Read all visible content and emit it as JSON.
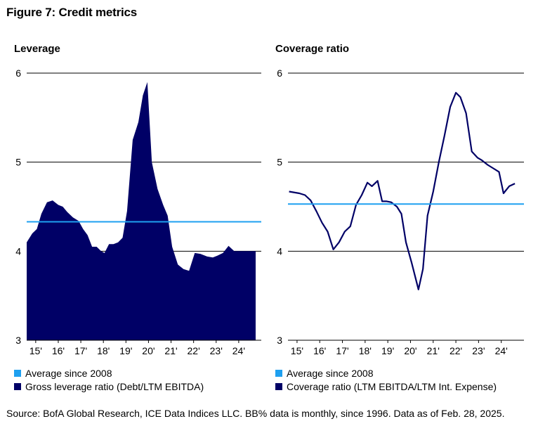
{
  "title": "Figure 7: Credit metrics",
  "source": "Source: BofA Global Research, ICE Data Indices LLC. BB% data is monthly, since 1996. Data as of Feb. 28, 2025.",
  "colors": {
    "navy": "#000066",
    "light_blue": "#1ea0f0"
  },
  "chart_data": [
    {
      "type": "area",
      "title": "Leverage",
      "xlabel": "",
      "ylabel": "",
      "ylim": [
        3,
        6
      ],
      "yticks": [
        3,
        4,
        5,
        6
      ],
      "xlim": [
        2014.6,
        2025.0
      ],
      "xtick_labels": [
        "15'",
        "16'",
        "17'",
        "18'",
        "19'",
        "20'",
        "21'",
        "22'",
        "23'",
        "24'"
      ],
      "xtick_positions": [
        2015,
        2016,
        2017,
        2018,
        2019,
        2020,
        2021,
        2022,
        2023,
        2024
      ],
      "grid": "horizontal",
      "legend": "bottom",
      "series": [
        {
          "name": "Gross leverage ratio (Debt/LTM EBITDA)",
          "color": "#000066",
          "x": [
            2014.6,
            2014.85,
            2015.05,
            2015.25,
            2015.5,
            2015.75,
            2016.0,
            2016.2,
            2016.4,
            2016.65,
            2016.9,
            2017.1,
            2017.3,
            2017.5,
            2017.7,
            2017.9,
            2018.05,
            2018.25,
            2018.45,
            2018.65,
            2018.85,
            2019.05,
            2019.3,
            2019.55,
            2019.75,
            2019.95,
            2020.15,
            2020.4,
            2020.65,
            2020.85,
            2021.05,
            2021.3,
            2021.55,
            2021.8,
            2022.05,
            2022.3,
            2022.6,
            2022.85,
            2023.05,
            2023.3,
            2023.55,
            2023.8,
            2024.05,
            2024.3,
            2024.55,
            2024.75
          ],
          "values": [
            4.1,
            4.2,
            4.25,
            4.42,
            4.55,
            4.57,
            4.52,
            4.5,
            4.44,
            4.38,
            4.34,
            4.25,
            4.18,
            4.05,
            4.05,
            4.0,
            3.98,
            4.08,
            4.08,
            4.1,
            4.15,
            4.45,
            5.25,
            5.45,
            5.75,
            5.9,
            5.0,
            4.7,
            4.52,
            4.4,
            4.05,
            3.85,
            3.8,
            3.78,
            3.98,
            3.97,
            3.94,
            3.93,
            3.95,
            3.98,
            4.06,
            4.0,
            4.0,
            4.0,
            4.0,
            4.0
          ]
        },
        {
          "name": "Average since 2008",
          "color": "#1ea0f0",
          "value": 4.33
        }
      ]
    },
    {
      "type": "line",
      "title": "Coverage ratio",
      "xlabel": "",
      "ylabel": "",
      "ylim": [
        3,
        6
      ],
      "yticks": [
        3,
        4,
        5,
        6
      ],
      "xlim": [
        2014.6,
        2025.0
      ],
      "xtick_labels": [
        "15'",
        "16'",
        "17'",
        "18'",
        "19'",
        "20'",
        "21'",
        "22'",
        "23'",
        "24'"
      ],
      "xtick_positions": [
        2015,
        2016,
        2017,
        2018,
        2019,
        2020,
        2021,
        2022,
        2023,
        2024
      ],
      "grid": "horizontal",
      "legend": "bottom",
      "series": [
        {
          "name": "Coverage ratio (LTM EBITDA/LTM Int. Expense)",
          "color": "#000066",
          "x": [
            2014.65,
            2015.1,
            2015.35,
            2015.6,
            2015.85,
            2016.1,
            2016.35,
            2016.6,
            2016.85,
            2017.1,
            2017.35,
            2017.6,
            2017.85,
            2018.1,
            2018.3,
            2018.55,
            2018.75,
            2018.95,
            2019.15,
            2019.4,
            2019.6,
            2019.8,
            2020.05,
            2020.35,
            2020.55,
            2020.75,
            2021.0,
            2021.25,
            2021.5,
            2021.75,
            2022.0,
            2022.2,
            2022.45,
            2022.7,
            2022.95,
            2023.15,
            2023.4,
            2023.65,
            2023.9,
            2024.1,
            2024.35,
            2024.6
          ],
          "values": [
            4.67,
            4.65,
            4.63,
            4.57,
            4.45,
            4.32,
            4.22,
            4.02,
            4.1,
            4.22,
            4.28,
            4.52,
            4.63,
            4.77,
            4.73,
            4.79,
            4.56,
            4.56,
            4.55,
            4.5,
            4.42,
            4.1,
            3.87,
            3.57,
            3.8,
            4.4,
            4.67,
            5.0,
            5.3,
            5.62,
            5.78,
            5.73,
            5.55,
            5.12,
            5.05,
            5.02,
            4.97,
            4.93,
            4.89,
            4.65,
            4.73,
            4.76
          ]
        },
        {
          "name": "Average since 2008",
          "color": "#1ea0f0",
          "value": 4.53
        }
      ]
    }
  ]
}
